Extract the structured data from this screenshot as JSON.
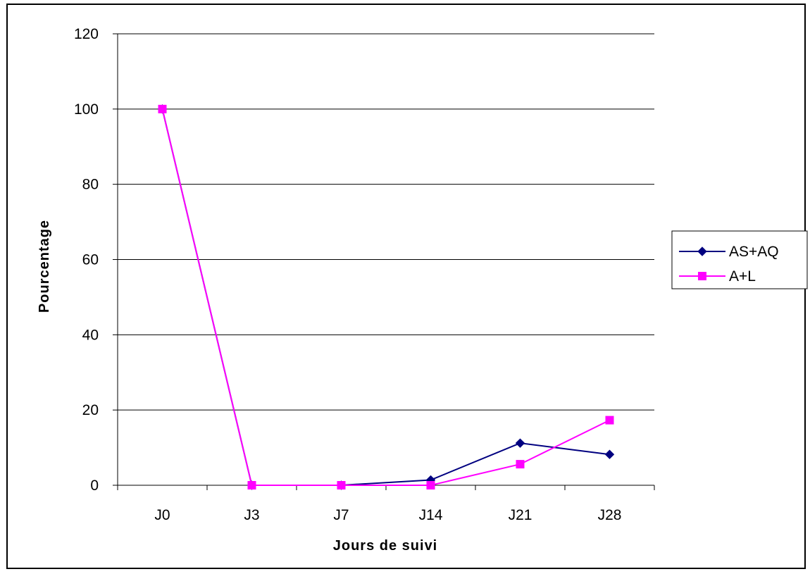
{
  "chart_data": {
    "type": "line",
    "title": "",
    "xlabel": "Jours de suivi",
    "ylabel": "Pourcentage",
    "categories": [
      "J0",
      "J3",
      "J7",
      "J14",
      "J21",
      "J28"
    ],
    "ylim": [
      0,
      120
    ],
    "yticks": [
      0,
      20,
      40,
      60,
      80,
      100,
      120
    ],
    "grid": true,
    "legend_position": "right",
    "series": [
      {
        "name": "AS+AQ",
        "color": "#000080",
        "marker": "diamond",
        "values": [
          100,
          0,
          0,
          1.4,
          11.2,
          8.2
        ]
      },
      {
        "name": "A+L",
        "color": "#ff00ff",
        "marker": "square",
        "values": [
          100,
          0,
          0,
          0,
          5.6,
          17.3
        ]
      }
    ]
  }
}
